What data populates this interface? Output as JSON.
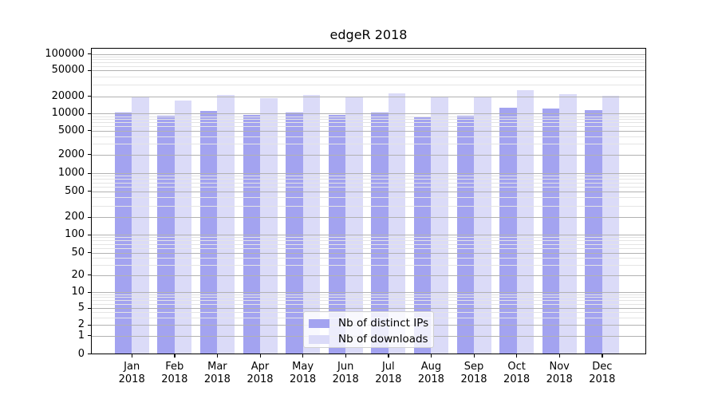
{
  "chart_data": {
    "type": "bar",
    "title": "edgeR 2018",
    "x_year_label": "2018",
    "categories": [
      "Jan",
      "Feb",
      "Mar",
      "Apr",
      "May",
      "Jun",
      "Jul",
      "Aug",
      "Sep",
      "Oct",
      "Nov",
      "Dec"
    ],
    "series": [
      {
        "name": "Nb of distinct IPs",
        "color": "#a3a3f0",
        "values": [
          10400,
          9200,
          11000,
          9500,
          10400,
          9400,
          10300,
          8900,
          9300,
          12500,
          12100,
          11300
        ]
      },
      {
        "name": "Nb of downloads",
        "color": "#dbdbf8",
        "values": [
          20000,
          17000,
          20800,
          18500,
          21200,
          19000,
          22000,
          19200,
          19400,
          24800,
          21800,
          20200
        ]
      }
    ],
    "y_ticks": [
      0,
      1,
      2,
      5,
      10,
      20,
      50,
      100,
      200,
      500,
      1000,
      2000,
      5000,
      10000,
      20000,
      50000,
      100000
    ],
    "y_scale": "symlog",
    "grid": true,
    "minor_grid": true,
    "legend_position": "inside-bottom-center",
    "colors": {
      "background": "#ffffff",
      "frame": "#000000",
      "major_grid": "#b2b2b2",
      "minor_grid": "#e4e4e4",
      "text": "#000000"
    }
  }
}
